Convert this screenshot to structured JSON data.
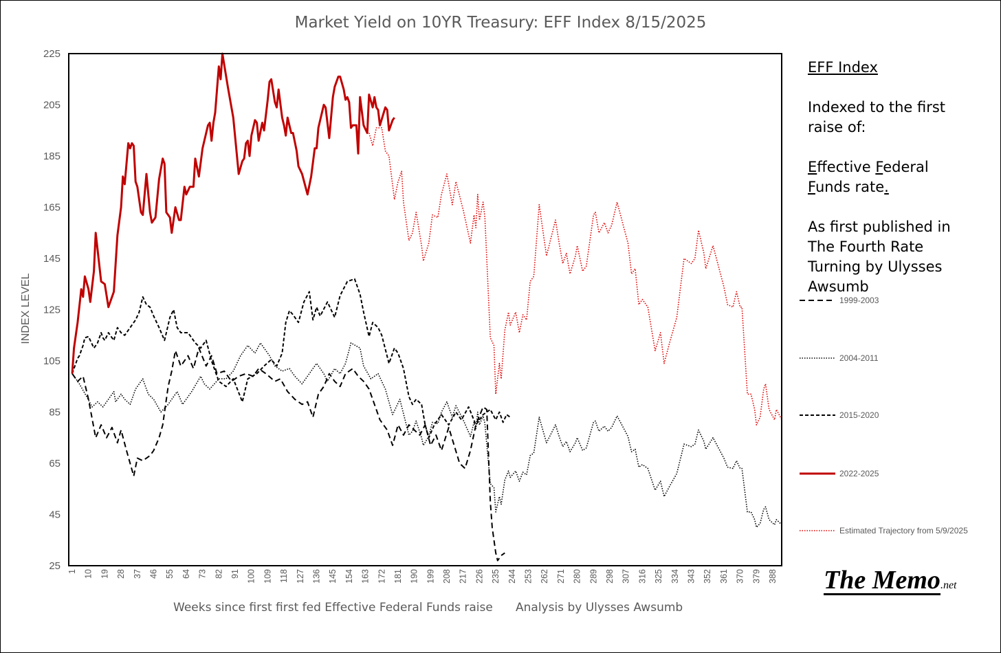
{
  "chart_data": {
    "type": "line",
    "title": "Market Yield on 10YR Treasury: EFF Index 8/15/2025",
    "xlabel": "Weeks since first first fed Effective Federal Funds raise",
    "xlabel_note": "Analysis by Ulysses Awsumb",
    "ylabel": "INDEX LEVEL",
    "ylim": [
      25,
      225
    ],
    "xlim": [
      1,
      393
    ],
    "y_ticks": [
      25,
      45,
      65,
      85,
      105,
      125,
      145,
      165,
      185,
      205,
      225
    ],
    "x_ticks": [
      1,
      10,
      19,
      28,
      37,
      46,
      55,
      64,
      73,
      82,
      91,
      100,
      109,
      118,
      127,
      136,
      145,
      154,
      163,
      172,
      181,
      190,
      199,
      208,
      217,
      226,
      235,
      244,
      253,
      262,
      271,
      280,
      289,
      298,
      307,
      316,
      325,
      334,
      343,
      352,
      361,
      370,
      379,
      388
    ],
    "grid": false,
    "legend_position": "right",
    "series": [
      {
        "name": "1999-2003",
        "color": "#000000",
        "style": "long-dash",
        "x": [
          1,
          4,
          7,
          10,
          14,
          17,
          20,
          23,
          26,
          28,
          31,
          35,
          37,
          40,
          44,
          46,
          49,
          51,
          54,
          56,
          58,
          61,
          65,
          68,
          71,
          75,
          78,
          81,
          85,
          89,
          93,
          97,
          101,
          104,
          108,
          113,
          116,
          120,
          124,
          128,
          131,
          134,
          137,
          140,
          143,
          146,
          149,
          152,
          156,
          159,
          162,
          165,
          168,
          171,
          175,
          178,
          181,
          184,
          187,
          190,
          193,
          196,
          199,
          202,
          205,
          209,
          212,
          215,
          218,
          221,
          224,
          228,
          230,
          232,
          233,
          235,
          236,
          238,
          240
        ],
        "y": [
          100,
          97,
          99,
          90,
          75,
          80,
          75,
          79,
          73,
          78,
          70,
          60,
          67,
          66,
          68,
          70,
          75,
          80,
          95,
          101,
          109,
          103,
          107,
          102,
          110,
          103,
          107,
          100,
          101,
          97,
          99,
          100,
          99,
          102,
          100,
          97,
          98,
          93,
          90,
          88,
          89,
          83,
          92,
          95,
          100,
          97,
          95,
          100,
          102,
          99,
          97,
          94,
          88,
          82,
          78,
          72,
          80,
          76,
          80,
          78,
          76,
          80,
          72,
          76,
          70,
          79,
          72,
          65,
          63,
          70,
          80,
          87,
          86,
          50,
          40,
          30,
          27,
          29,
          30
        ]
      },
      {
        "name": "2004-2011",
        "color": "#000000",
        "style": "dotted",
        "x": [
          1,
          5,
          9,
          12,
          15,
          18,
          21,
          24,
          25,
          28,
          30,
          33,
          36,
          40,
          43,
          46,
          50,
          54,
          59,
          62,
          67,
          72,
          74,
          77,
          82,
          86,
          90,
          94,
          98,
          102,
          105,
          110,
          113,
          117,
          121,
          124,
          128,
          132,
          136,
          140,
          142,
          146,
          149,
          152,
          155,
          160,
          162,
          166,
          170,
          174,
          178,
          182,
          187,
          189,
          191,
          194,
          195,
          198,
          200,
          203,
          205,
          208,
          211,
          213,
          217,
          221,
          223,
          224,
          225,
          226,
          228,
          229,
          232,
          234,
          235,
          237,
          238,
          240,
          242,
          243,
          246,
          248,
          250,
          252,
          254,
          256,
          259,
          263,
          268,
          270,
          272,
          274,
          276,
          279,
          280,
          283,
          285,
          289,
          290,
          292,
          295,
          297,
          299,
          302,
          305,
          308,
          310,
          312,
          314,
          316,
          319,
          323,
          326,
          328,
          331,
          335,
          339,
          343,
          345,
          347,
          350,
          351,
          355,
          358,
          361,
          363,
          366,
          368,
          370,
          371,
          374,
          376,
          378,
          379,
          381,
          383,
          384,
          386,
          389,
          390,
          393
        ],
        "y": [
          100,
          96,
          91,
          87,
          89,
          87,
          90,
          93,
          89,
          92,
          90,
          88,
          94,
          98,
          92,
          90,
          85,
          88,
          93,
          88,
          93,
          99,
          96,
          94,
          98,
          98,
          101,
          107,
          111,
          108,
          112,
          107,
          103,
          101,
          102,
          99,
          96,
          100,
          104,
          100,
          97,
          102,
          100,
          104,
          112,
          110,
          103,
          98,
          100,
          94,
          84,
          90,
          76,
          77.5,
          81.5,
          75,
          72,
          75.5,
          81,
          80.5,
          85,
          89,
          83,
          87.5,
          82,
          75.5,
          81,
          78.5,
          85,
          80,
          83.5,
          80.5,
          57,
          55.5,
          46,
          52,
          49,
          58.5,
          62,
          59.5,
          62,
          58,
          61.5,
          60.5,
          68,
          69,
          83,
          73,
          80,
          75.5,
          71.5,
          73.5,
          69.5,
          73,
          75,
          70,
          71,
          81,
          81.5,
          77.5,
          79.5,
          77.5,
          79,
          83.5,
          79.5,
          75.5,
          69.5,
          70.5,
          63.5,
          64.5,
          63,
          54.5,
          58,
          52,
          56,
          61,
          72.5,
          71.5,
          72.5,
          78,
          73.5,
          70.5,
          75,
          71,
          67,
          63.5,
          63,
          66,
          63,
          63,
          46,
          46,
          43,
          40,
          41.5,
          47,
          48,
          43,
          41,
          43,
          41
        ]
      },
      {
        "name": "2015-2020",
        "color": "#000000",
        "style": "short-dash",
        "x": [
          1,
          4,
          5,
          7,
          8,
          10,
          13,
          15,
          17,
          18,
          19,
          21,
          24,
          26,
          28,
          30,
          33,
          36,
          38,
          40,
          42,
          44,
          46,
          49,
          52,
          55,
          57,
          59,
          61,
          65,
          69,
          72,
          75,
          78,
          82,
          86,
          90,
          95,
          98,
          103,
          107,
          111,
          114,
          117,
          119,
          121,
          123,
          126,
          129,
          132,
          134,
          136,
          138,
          142,
          146,
          149,
          153,
          157,
          160,
          162,
          165,
          167,
          170,
          172,
          176,
          179,
          181,
          184,
          187,
          189,
          191,
          194,
          196,
          198,
          201,
          205,
          209,
          213,
          216,
          220,
          224,
          228,
          232,
          235,
          237,
          239,
          241,
          243
        ],
        "y": [
          100,
          106,
          107,
          111,
          114,
          114.5,
          110,
          112,
          116,
          114,
          113,
          116,
          113,
          118,
          116,
          115,
          118,
          121,
          124,
          130,
          127,
          126,
          122.5,
          118,
          113,
          122,
          125,
          118,
          116,
          116,
          112,
          110,
          113,
          105,
          97,
          95,
          98,
          89,
          98,
          100,
          103,
          105.5,
          103,
          108,
          120,
          124.6,
          123,
          120,
          128,
          132,
          121,
          126,
          122.5,
          128,
          122,
          130.5,
          136,
          137,
          131,
          124,
          114.5,
          120,
          118,
          115,
          104,
          110,
          108,
          102,
          91,
          88,
          90,
          88,
          80,
          75,
          80,
          84,
          80,
          85,
          82,
          87,
          80,
          84,
          86,
          82,
          85,
          81,
          84,
          83
        ]
      },
      {
        "name": "2022-2025",
        "color": "#C00000",
        "style": "solid",
        "x": [
          1,
          2,
          4,
          6,
          7,
          8,
          10,
          11,
          13,
          14,
          17,
          19,
          21,
          24,
          26,
          28,
          29,
          30,
          32,
          33,
          34,
          35,
          36,
          37,
          39,
          40,
          42,
          44,
          45,
          47,
          49,
          51,
          52,
          53,
          55,
          56,
          58,
          60,
          61,
          63,
          64,
          66,
          68,
          69,
          71,
          73,
          76,
          77,
          78,
          79,
          80,
          82,
          83,
          84,
          87,
          90,
          93,
          95,
          96,
          97,
          98,
          99,
          100,
          102,
          103,
          104,
          106,
          107,
          109,
          110,
          111,
          113,
          114,
          115,
          117,
          118,
          119,
          120,
          122,
          123,
          125,
          126,
          128,
          131,
          133,
          135,
          136,
          137,
          138,
          140,
          141,
          143,
          145,
          146,
          148,
          149,
          151,
          152,
          153,
          154,
          155,
          156,
          158,
          159,
          160,
          162,
          164,
          165,
          167,
          168,
          169,
          170,
          171,
          174,
          175,
          176,
          178,
          179
        ],
        "y": [
          100,
          110,
          120,
          133,
          130,
          138,
          133,
          128,
          140,
          155,
          136,
          135,
          126,
          132,
          154,
          165,
          177,
          174,
          190,
          188,
          190,
          189,
          175,
          173,
          163,
          162,
          178,
          163,
          159,
          161,
          176,
          184,
          182,
          163,
          161,
          155,
          165,
          160,
          160,
          173,
          170,
          173,
          173,
          184,
          177,
          188,
          197,
          198,
          191,
          198,
          202,
          220,
          215,
          225,
          212,
          200,
          178,
          183,
          184,
          190,
          191,
          185,
          193,
          199,
          198,
          191,
          198,
          195,
          207,
          214,
          215,
          206,
          204,
          211,
          200,
          197,
          193,
          200,
          194,
          194,
          187,
          181,
          178,
          170,
          177,
          188,
          188,
          196,
          199,
          205,
          204,
          192,
          208,
          212,
          216,
          216,
          211,
          207,
          208,
          206,
          196,
          197,
          197,
          186,
          208,
          197,
          194,
          209,
          204,
          208,
          204,
          203,
          197,
          204,
          203,
          195,
          199,
          200
        ]
      },
      {
        "name": "Estimated Trajectory from 5/9/2025",
        "color": "#E00000",
        "style": "dotted",
        "x": [
          165,
          167,
          169,
          171,
          172,
          174,
          176,
          179,
          181,
          183,
          184,
          187,
          189,
          191,
          194,
          195,
          198,
          200,
          203,
          205,
          208,
          211,
          213,
          217,
          221,
          223,
          224,
          225,
          226,
          228,
          229,
          232,
          234,
          235,
          237,
          238,
          240,
          242,
          243,
          246,
          248,
          250,
          252,
          254,
          256,
          259,
          263,
          268,
          270,
          272,
          274,
          276,
          279,
          280,
          283,
          285,
          289,
          290,
          292,
          295,
          297,
          299,
          302,
          305,
          308,
          310,
          312,
          314,
          316,
          319,
          323,
          326,
          328,
          331,
          335,
          339,
          343,
          345,
          347,
          350,
          351,
          355,
          358,
          361,
          363,
          366,
          368,
          370,
          371,
          374,
          376,
          378,
          379,
          381,
          383,
          384,
          386,
          389,
          390,
          393
        ],
        "y": [
          194,
          189,
          196,
          196,
          196,
          187,
          185,
          168,
          175,
          179,
          167,
          152,
          155,
          163,
          150,
          144,
          151,
          162,
          161,
          170,
          178,
          166,
          175,
          164,
          151,
          162,
          157,
          170,
          160,
          167,
          161,
          114,
          111,
          92,
          104,
          98,
          117,
          124,
          119,
          124,
          116,
          123,
          121,
          136,
          138,
          166,
          146,
          160,
          151,
          143,
          147,
          139,
          146,
          150,
          140,
          142,
          162,
          163,
          155,
          159,
          155,
          158,
          167,
          159,
          151,
          139,
          141,
          127,
          129,
          126,
          109,
          116,
          104,
          112,
          122,
          145,
          143,
          145,
          156,
          147,
          141,
          150,
          142,
          134,
          127,
          126,
          132,
          126,
          126,
          92,
          92,
          86,
          80,
          83,
          94,
          96,
          86,
          82,
          86,
          82
        ]
      }
    ]
  },
  "side_panel": {
    "heading": "EFF Index",
    "para1": [
      "Indexed to the first",
      "raise of:"
    ],
    "para2_line1": [
      {
        "t": "E",
        "u": true
      },
      {
        "t": "ffective "
      },
      {
        "t": "F",
        "u": true
      },
      {
        "t": "ederal"
      }
    ],
    "para2_line2": [
      {
        "t": "F",
        "u": true
      },
      {
        "t": "unds rate"
      },
      {
        "t": ".",
        "u": true
      }
    ],
    "para3": [
      "As first published in",
      "The Fourth Rate",
      "Turning by Ulysses",
      "Awsumb"
    ]
  },
  "logo": {
    "main": "The Memo",
    "suffix": ".net"
  }
}
